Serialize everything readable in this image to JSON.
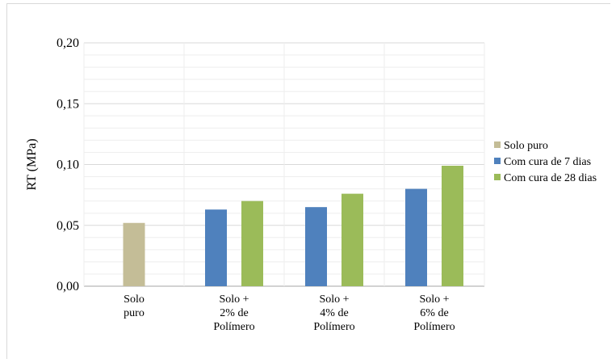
{
  "chart_data": {
    "type": "bar",
    "ylabel": "RT (MPa)",
    "ylim": [
      0,
      0.2
    ],
    "yticks": [
      "0,00",
      "0,05",
      "0,10",
      "0,15",
      "0,20"
    ],
    "categories": [
      [
        "Solo",
        "puro"
      ],
      [
        "Solo +",
        "2% de",
        "Polímero"
      ],
      [
        "Solo +",
        "4% de",
        "Polímero"
      ],
      [
        "Solo +",
        "6% de",
        "Polímero"
      ]
    ],
    "series": [
      {
        "name": "Solo puro",
        "color": "#c4bd97",
        "values": [
          0.052,
          null,
          null,
          null
        ]
      },
      {
        "name": "Com cura de 7 dias",
        "color": "#4f81bd",
        "values": [
          null,
          0.063,
          0.065,
          0.08
        ]
      },
      {
        "name": "Com cura de 28 dias",
        "color": "#9bbb59",
        "values": [
          null,
          0.07,
          0.076,
          0.099
        ]
      }
    ],
    "grid": true,
    "legend": "right"
  }
}
